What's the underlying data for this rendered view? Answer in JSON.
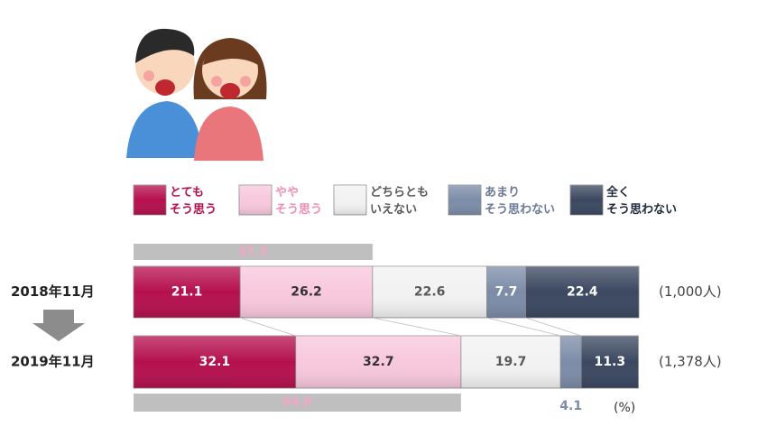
{
  "chart_data": {
    "type": "stacked-bar",
    "categories": [
      "2018年11月",
      "2019年11月"
    ],
    "sample_sizes": [
      "(1,000人)",
      "(1,378人)"
    ],
    "series": [
      {
        "name": "とても\nそう思う",
        "color": "#b5104e",
        "text_color": "#b5104e",
        "label_color": "#ffffff",
        "values": [
          21.1,
          32.1
        ]
      },
      {
        "name": "やや\nそう思う",
        "color": "#f8c8dc",
        "text_color": "#ef8fb5",
        "label_color": "#333333",
        "values": [
          26.2,
          32.7
        ]
      },
      {
        "name": "どちらとも\nいえない",
        "color": "#f2f2f2",
        "text_color": "#595959",
        "label_color": "#595959",
        "values": [
          22.6,
          19.7
        ]
      },
      {
        "name": "あまり\nそう思わない",
        "color": "#7c8ca8",
        "text_color": "#6b7a96",
        "label_color": "#ffffff",
        "values": [
          7.7,
          4.1
        ]
      },
      {
        "name": "全く\nそう思わない",
        "color": "#3b4860",
        "text_color": "#1f2a3c",
        "label_color": "#ffffff",
        "values": [
          22.4,
          11.3
        ]
      }
    ],
    "totals": {
      "values": [
        47.3,
        64.8
      ],
      "color": "#bfbfbf",
      "label_color": "#f3a6c6"
    },
    "xlim": [
      0,
      100
    ],
    "unit": "(%)"
  }
}
